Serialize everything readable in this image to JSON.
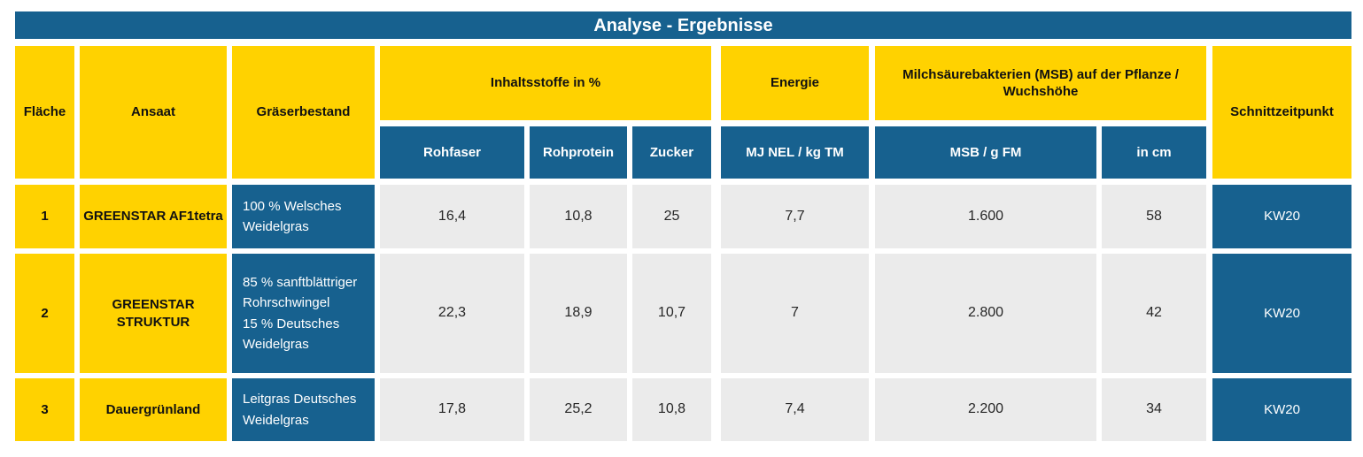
{
  "title": "Analyse - Ergebnisse",
  "colors": {
    "header_blue": "#17618F",
    "accent_yellow": "#FFD200",
    "value_gray": "#EBEBEB",
    "text_on_blue": "#ffffff",
    "text_on_yellow": "#111111"
  },
  "header": {
    "flaeche": "Fläche",
    "ansaat": "Ansaat",
    "graeserbestand": "Gräserbestand",
    "inhaltsstoffe_group": "Inhaltsstoffe in %",
    "energie_group": "Energie",
    "msb_group": "Milchsäurebakterien (MSB) auf der Pflanze / Wuchshöhe",
    "schnittzeitpunkt": "Schnittzeitpunkt",
    "sub": {
      "rohfaser": "Rohfaser",
      "rohprotein": "Rohprotein",
      "zucker": "Zucker",
      "mj_nel": "MJ NEL / kg TM",
      "msb_g_fm": "MSB / g FM",
      "in_cm": "in cm"
    }
  },
  "rows": [
    {
      "flaeche": "1",
      "ansaat": "GREENSTAR AF1tetra",
      "graeserbestand": "100 % Welsches Weidelgras",
      "rohfaser": "16,4",
      "rohprotein": "10,8",
      "zucker": "25",
      "mj_nel": "7,7",
      "msb_g_fm": "1.600",
      "in_cm": "58",
      "schnittzeitpunkt": "KW20"
    },
    {
      "flaeche": "2",
      "ansaat": "GREENSTAR\nSTRUKTUR",
      "graeserbestand": "85 % sanftblättriger Rohrschwingel\n15 % Deutsches Weidelgras",
      "rohfaser": "22,3",
      "rohprotein": "18,9",
      "zucker": "10,7",
      "mj_nel": "7",
      "msb_g_fm": "2.800",
      "in_cm": "42",
      "schnittzeitpunkt": "KW20"
    },
    {
      "flaeche": "3",
      "ansaat": "Dauergrünland",
      "graeserbestand": "Leitgras Deutsches Weidelgras",
      "rohfaser": "17,8",
      "rohprotein": "25,2",
      "zucker": "10,8",
      "mj_nel": "7,4",
      "msb_g_fm": "2.200",
      "in_cm": "34",
      "schnittzeitpunkt": "KW20"
    }
  ]
}
